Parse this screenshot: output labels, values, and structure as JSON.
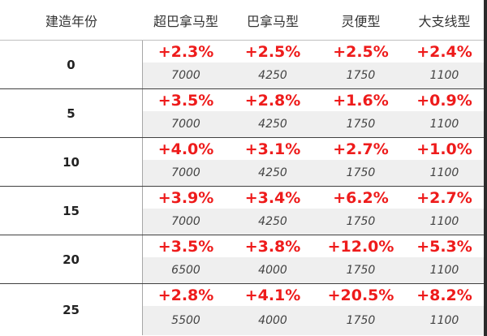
{
  "headers": [
    "建造年份",
    "超巴拿马型",
    "巴拿马型",
    "灵便型",
    "大支线型"
  ],
  "rows": [
    {
      "year": "0",
      "cells": [
        {
          "pct": "+2.3%",
          "cap": "7000"
        },
        {
          "pct": "+2.5%",
          "cap": "4250"
        },
        {
          "pct": "+2.5%",
          "cap": "1750"
        },
        {
          "pct": "+2.4%",
          "cap": "1100"
        }
      ]
    },
    {
      "year": "5",
      "cells": [
        {
          "pct": "+3.5%",
          "cap": "7000"
        },
        {
          "pct": "+2.8%",
          "cap": "4250"
        },
        {
          "pct": "+1.6%",
          "cap": "1750"
        },
        {
          "pct": "+0.9%",
          "cap": "1100"
        }
      ]
    },
    {
      "year": "10",
      "cells": [
        {
          "pct": "+4.0%",
          "cap": "7000"
        },
        {
          "pct": "+3.1%",
          "cap": "4250"
        },
        {
          "pct": "+2.7%",
          "cap": "1750"
        },
        {
          "pct": "+1.0%",
          "cap": "1100"
        }
      ]
    },
    {
      "year": "15",
      "cells": [
        {
          "pct": "+3.9%",
          "cap": "7000"
        },
        {
          "pct": "+3.4%",
          "cap": "4250"
        },
        {
          "pct": "+6.2%",
          "cap": "1750"
        },
        {
          "pct": "+2.7%",
          "cap": "1100"
        }
      ]
    },
    {
      "year": "20",
      "cells": [
        {
          "pct": "+3.5%",
          "cap": "6500"
        },
        {
          "pct": "+3.8%",
          "cap": "4000"
        },
        {
          "pct": "+12.0%",
          "cap": "1750"
        },
        {
          "pct": "+5.3%",
          "cap": "1100"
        }
      ]
    },
    {
      "year": "25",
      "cells": [
        {
          "pct": "+2.8%",
          "cap": "5500"
        },
        {
          "pct": "+4.1%",
          "cap": "4000"
        },
        {
          "pct": "+20.5%",
          "cap": "1750"
        },
        {
          "pct": "+8.2%",
          "cap": "1100"
        }
      ]
    }
  ],
  "colors": {
    "percent_text": "#ee1b1b",
    "capacity_background": "#efefef",
    "row_divider": "#404040"
  }
}
